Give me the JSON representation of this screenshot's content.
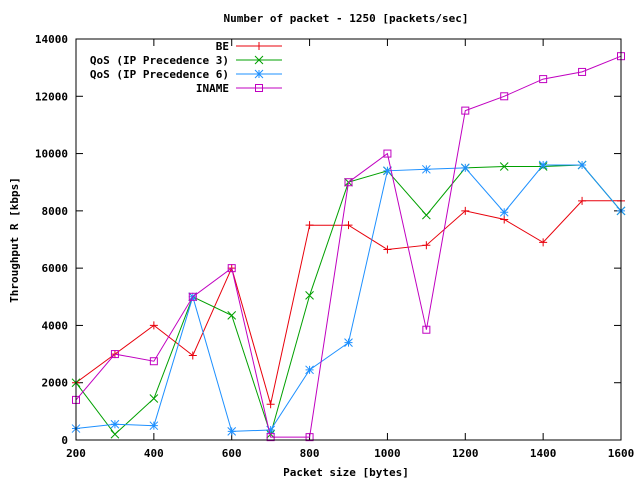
{
  "chart_data": {
    "type": "line",
    "title": "Number of packet - 1250 [packets/sec]",
    "xlabel": "Packet size [bytes]",
    "ylabel": "Throughput R [kbps]",
    "xlim": [
      200,
      1600
    ],
    "ylim": [
      0,
      14000
    ],
    "xticks": [
      200,
      400,
      600,
      800,
      1000,
      1200,
      1400,
      1600
    ],
    "yticks": [
      0,
      2000,
      4000,
      6000,
      8000,
      10000,
      12000,
      14000
    ],
    "grid": false,
    "legend_position": "top-left",
    "x": [
      200,
      300,
      400,
      500,
      600,
      700,
      800,
      900,
      1000,
      1100,
      1200,
      1300,
      1400,
      1500,
      1600
    ],
    "series": [
      {
        "name": "BE",
        "color": "#e8000b",
        "marker": "plus",
        "values": [
          2000,
          3000,
          4000,
          2950,
          6000,
          1250,
          7500,
          7500,
          6650,
          6800,
          8000,
          7700,
          6900,
          8350,
          8350
        ]
      },
      {
        "name": "QoS (IP Precedence 3)",
        "color": "#00a000",
        "marker": "cross",
        "values": [
          2000,
          200,
          1450,
          5000,
          4350,
          200,
          5050,
          9000,
          9400,
          7850,
          9500,
          9550,
          9550,
          9600,
          8000
        ]
      },
      {
        "name": "QoS (IP Precedence 6)",
        "color": "#1e90ff",
        "marker": "star",
        "values": [
          400,
          550,
          500,
          5000,
          300,
          350,
          2450,
          3400,
          9400,
          9450,
          9500,
          7950,
          9600,
          9600,
          8000
        ]
      },
      {
        "name": "INAME",
        "color": "#c000c0",
        "marker": "square",
        "values": [
          1400,
          3000,
          2750,
          5000,
          6000,
          100,
          100,
          9000,
          10000,
          3850,
          11500,
          12000,
          12600,
          12850,
          13400
        ]
      }
    ]
  }
}
